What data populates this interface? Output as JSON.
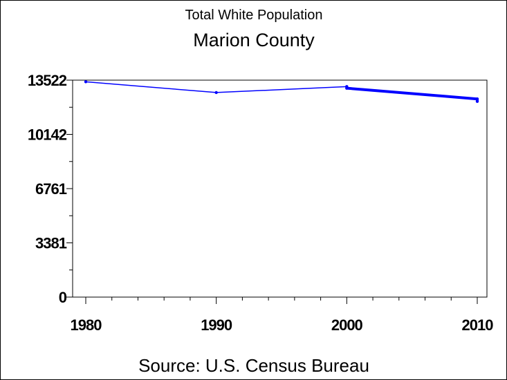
{
  "chart_data": {
    "type": "line",
    "title": "Total White Population",
    "subtitle": "Marion County",
    "source": "Source: U.S. Census Bureau",
    "x": [
      1980,
      1990,
      2000,
      2000,
      2010,
      2010
    ],
    "xticks": [
      "1980",
      "1990",
      "2000",
      "2010"
    ],
    "xlim": [
      1980,
      2010
    ],
    "series": [
      {
        "values": [
          13420,
          12750,
          13120,
          13020,
          12350,
          12200
        ]
      }
    ],
    "yticks": [
      "0",
      "3381",
      "6761",
      "10142",
      "13522"
    ],
    "ylim": [
      0,
      13522
    ],
    "grid": false,
    "legend": "none",
    "line_color": "#0000ff"
  }
}
